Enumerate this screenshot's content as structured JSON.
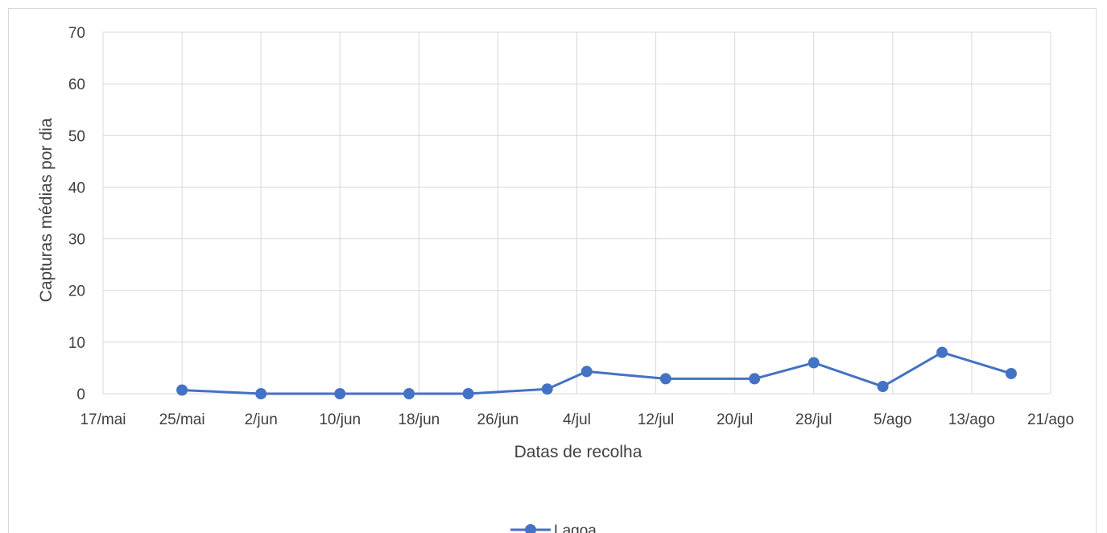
{
  "chart_data": {
    "type": "line",
    "xlabel": "Datas de recolha",
    "ylabel": "Capturas médias por dia",
    "ylim": [
      0,
      70
    ],
    "yticks": [
      0,
      10,
      20,
      30,
      40,
      50,
      60,
      70
    ],
    "xlim": [
      "17/mai",
      "21/ago"
    ],
    "xticks": [
      "17/mai",
      "25/mai",
      "2/jun",
      "10/jun",
      "18/jun",
      "26/jun",
      "4/jul",
      "12/jul",
      "20/jul",
      "28/jul",
      "5/ago",
      "13/ago",
      "21/ago"
    ],
    "grid": true,
    "legend": "bottom",
    "colors": {
      "series": "#4472c4",
      "grid": "#d9d9d9",
      "text": "#404040"
    },
    "series": [
      {
        "name": "Lagoa",
        "x": [
          "25/mai",
          "2/jun",
          "10/jun",
          "17/jun",
          "23/jun",
          "1/jul",
          "5/jul",
          "13/jul",
          "22/jul",
          "28/jul",
          "4/ago",
          "10/ago",
          "17/ago"
        ],
        "y": [
          0.7,
          0.0,
          0.0,
          0.0,
          0.0,
          0.9,
          4.3,
          2.9,
          2.9,
          6.0,
          1.4,
          8.0,
          3.9
        ]
      }
    ]
  }
}
